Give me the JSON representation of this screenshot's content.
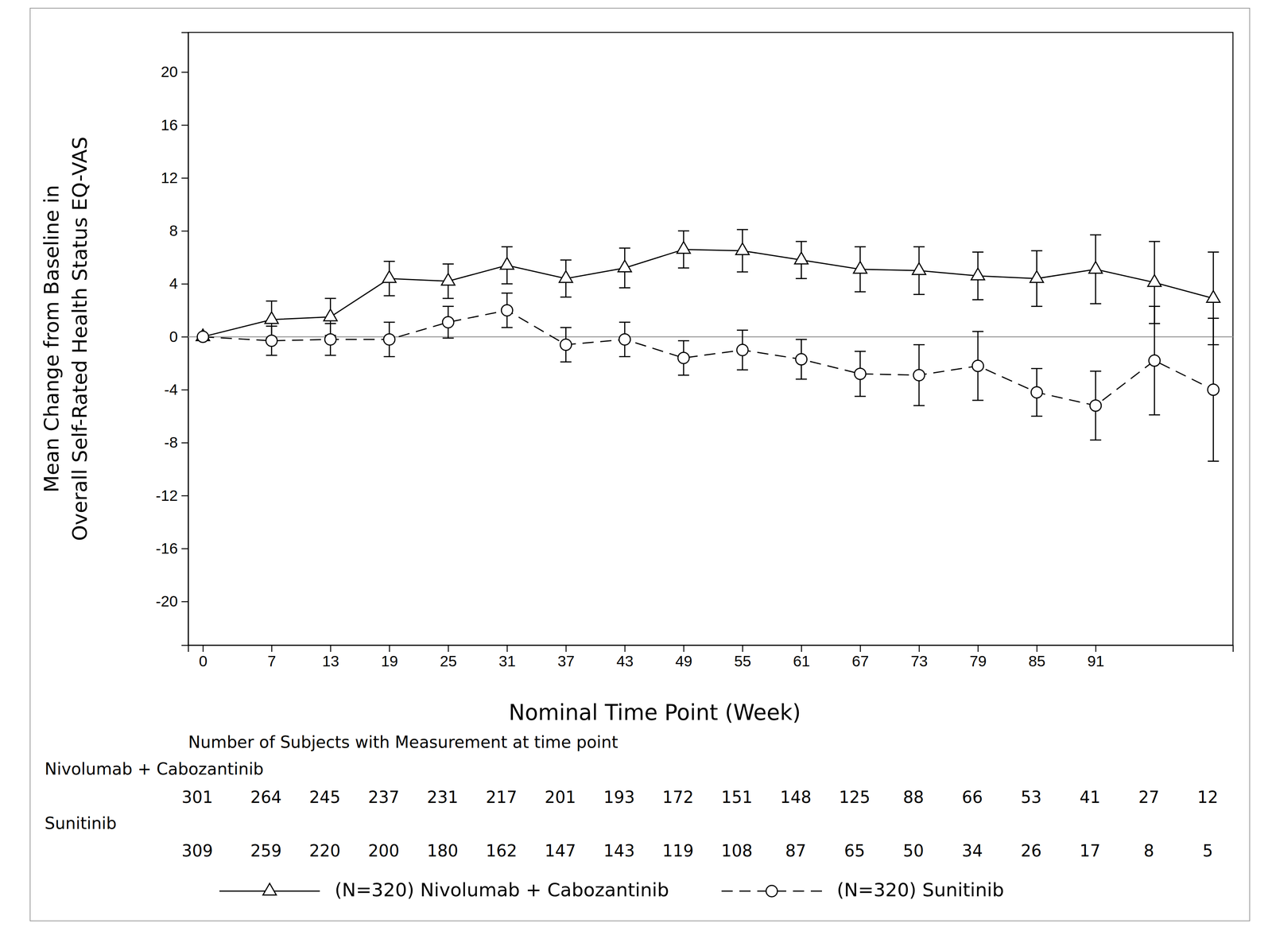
{
  "chart_data": {
    "type": "line",
    "y_label": [
      "Mean Change from Baseline in",
      "Overall Self-Rated Health Status EQ-VAS"
    ],
    "x_label": "Nominal Time Point (Week)",
    "x": [
      0,
      7,
      13,
      19,
      25,
      31,
      37,
      43,
      49,
      55,
      61,
      67,
      73,
      79,
      85,
      91,
      97,
      103
    ],
    "xlim": [
      -1.5,
      105
    ],
    "xticks": [
      0,
      7,
      13,
      19,
      25,
      31,
      37,
      43,
      49,
      55,
      61,
      67,
      73,
      79,
      85,
      91
    ],
    "ylim": [
      -23.3,
      23
    ],
    "yticks": [
      -20,
      -16,
      -12,
      -8,
      -4,
      0,
      4,
      8,
      12,
      16,
      20
    ],
    "hline": 0,
    "series": [
      {
        "name": "(N=320) Nivolumab + Cabozantinib",
        "color": "#000000",
        "marker": "triangle",
        "line_style": "solid",
        "values": [
          0,
          1.3,
          1.5,
          4.4,
          4.2,
          5.4,
          4.4,
          5.2,
          6.6,
          6.5,
          5.8,
          5.1,
          5.0,
          4.6,
          4.4,
          5.1,
          4.1,
          2.9
        ],
        "errors": [
          0,
          1.4,
          1.4,
          1.3,
          1.3,
          1.4,
          1.4,
          1.5,
          1.4,
          1.6,
          1.4,
          1.7,
          1.8,
          1.8,
          2.1,
          2.6,
          3.1,
          3.5
        ]
      },
      {
        "name": "(N=320) Sunitinib",
        "color": "#000000",
        "marker": "circle",
        "line_style": "dashed",
        "values": [
          0,
          -0.3,
          -0.2,
          -0.2,
          1.1,
          2.0,
          -0.6,
          -0.2,
          -1.6,
          -1.0,
          -1.7,
          -2.8,
          -2.9,
          -2.2,
          -4.2,
          -5.2,
          -1.8,
          -4.0
        ],
        "errors": [
          0,
          1.1,
          1.2,
          1.3,
          1.2,
          1.3,
          1.3,
          1.3,
          1.3,
          1.5,
          1.5,
          1.7,
          2.3,
          2.6,
          1.8,
          2.6,
          4.1,
          5.4
        ]
      }
    ],
    "at_risk_title": "Number of Subjects with Measurement at time point",
    "at_risk": [
      {
        "name": "Nivolumab + Cabozantinib",
        "values": [
          301,
          264,
          245,
          237,
          231,
          217,
          201,
          193,
          172,
          151,
          148,
          125,
          88,
          66,
          53,
          41,
          27,
          12
        ]
      },
      {
        "name": "Sunitinib",
        "values": [
          309,
          259,
          220,
          200,
          180,
          162,
          147,
          143,
          119,
          108,
          87,
          65,
          50,
          34,
          26,
          17,
          8,
          5
        ]
      }
    ]
  }
}
